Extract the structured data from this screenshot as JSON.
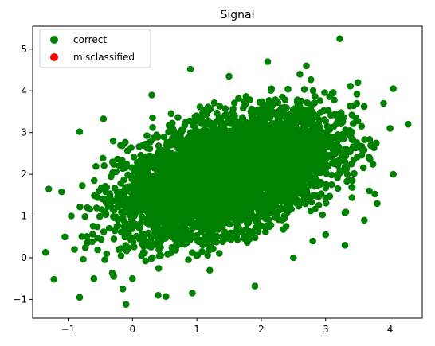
{
  "chart_data": {
    "type": "scatter",
    "title": "Signal",
    "xlabel": "",
    "ylabel": "",
    "xlim": [
      -1.55,
      4.5
    ],
    "ylim": [
      -1.45,
      5.55
    ],
    "xticks": [
      -1,
      0,
      1,
      2,
      3,
      4
    ],
    "yticks": [
      -1,
      0,
      1,
      2,
      3,
      4,
      5
    ],
    "grid": false,
    "legend_position": "top-left",
    "series": [
      {
        "name": "correct",
        "color": "#008000",
        "cloud": {
          "center": [
            1.5,
            2.0
          ],
          "sx": 0.8,
          "sy": 0.72,
          "rho": 0.45,
          "count": 5200
        },
        "points": [
          [
            3.22,
            5.25
          ],
          [
            -1.35,
            0.13
          ],
          [
            -1.22,
            -0.52
          ],
          [
            -1.3,
            1.65
          ],
          [
            -1.1,
            1.58
          ],
          [
            -0.82,
            -0.95
          ],
          [
            -0.82,
            3.02
          ],
          [
            -0.1,
            -1.12
          ],
          [
            -0.15,
            -0.75
          ],
          [
            0.4,
            -0.9
          ],
          [
            0.52,
            -0.93
          ],
          [
            0.93,
            -0.85
          ],
          [
            1.9,
            -0.68
          ],
          [
            -0.45,
            3.33
          ],
          [
            0.9,
            4.52
          ],
          [
            2.1,
            4.7
          ],
          [
            2.7,
            4.6
          ],
          [
            4.05,
            4.05
          ],
          [
            4.28,
            3.2
          ],
          [
            4.05,
            2.0
          ],
          [
            -1.05,
            0.5
          ],
          [
            -0.9,
            0.2
          ],
          [
            -0.6,
            -0.5
          ],
          [
            0.0,
            -0.5
          ],
          [
            1.2,
            -0.3
          ],
          [
            2.5,
            0.0
          ],
          [
            3.0,
            0.55
          ],
          [
            3.6,
            0.9
          ],
          [
            3.8,
            1.3
          ],
          [
            4.0,
            3.1
          ],
          [
            3.9,
            3.7
          ],
          [
            3.5,
            4.2
          ],
          [
            2.6,
            4.4
          ],
          [
            1.5,
            4.35
          ],
          [
            0.3,
            3.9
          ],
          [
            -0.7,
            1.2
          ],
          [
            -0.95,
            1.0
          ],
          [
            3.3,
            0.3
          ],
          [
            2.8,
            0.4
          ],
          [
            -0.3,
            2.8
          ]
        ]
      },
      {
        "name": "misclassified",
        "color": "#ff0000",
        "points": []
      }
    ]
  }
}
